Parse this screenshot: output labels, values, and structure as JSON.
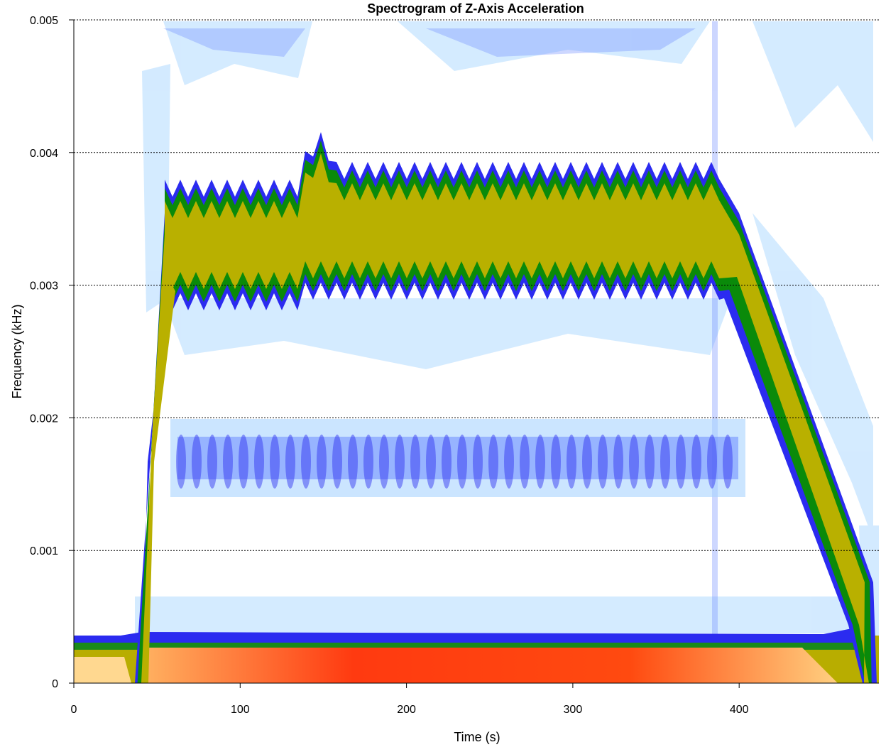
{
  "chart_data": {
    "type": "spectrogram",
    "title": "Spectrogram of Z-Axis Acceleration",
    "x_label": "Time (s)",
    "y_label": "Frequency (kHz)",
    "xlim": [
      0,
      484
    ],
    "xticks": [
      0,
      100,
      200,
      300,
      400
    ],
    "ylim": [
      0,
      0.005
    ],
    "yticks": [
      0,
      0.001,
      0.002,
      0.003,
      0.004,
      0.005
    ],
    "grid": true
  }
}
